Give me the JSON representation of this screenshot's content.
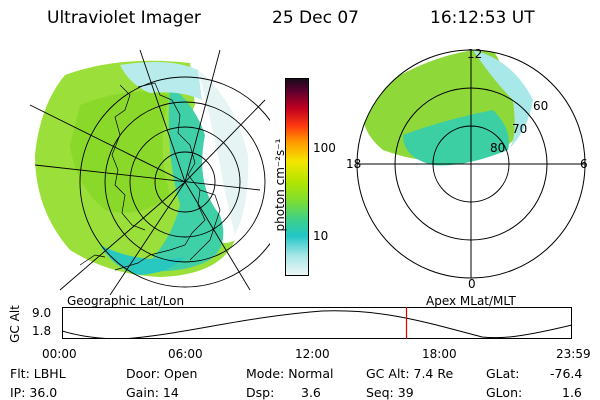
{
  "header": {
    "instrument": "Ultraviolet Imager",
    "date": "25 Dec 07",
    "time": "16:12:53 UT"
  },
  "colorbar": {
    "unit_label": "photon cm⁻²s⁻¹",
    "ticks": [
      "100",
      "10"
    ],
    "colors": [
      "#2a0a2a",
      "#7a0030",
      "#d0002a",
      "#ff6a00",
      "#ffb000",
      "#f2ef00",
      "#bde800",
      "#7fdc20",
      "#3fd080",
      "#20c8c8",
      "#a8e8e8",
      "#e8f4f4"
    ]
  },
  "left_map": {
    "caption": "Geographic Lat/Lon"
  },
  "right_map": {
    "caption": "Apex MLat/MLT",
    "mlt_labels": [
      "12",
      "18",
      "6",
      "0"
    ],
    "lat_labels": [
      "60",
      "70",
      "80"
    ]
  },
  "timeline": {
    "ylabel": "GC Alt",
    "yticks": [
      "9.0",
      "1.8"
    ],
    "xticks": [
      "00:00",
      "06:00",
      "12:00",
      "18:00",
      "23:59"
    ],
    "current_fraction": 0.6755,
    "marker_color": "#e00000"
  },
  "info": {
    "flt": "Flt: LBHL",
    "ip": "IP: 36.0",
    "door": "Door: Open",
    "gain": "Gain: 14",
    "mode": "Mode: Normal",
    "dsp_label": "Dsp:",
    "dsp_value": "3.6",
    "gc_alt": "GC Alt: 7.4 Re",
    "seq": "Seq: 39",
    "glat_label": "GLat:",
    "glat_value": "-76.4",
    "glon_label": "GLon:",
    "glon_value": "1.6"
  }
}
